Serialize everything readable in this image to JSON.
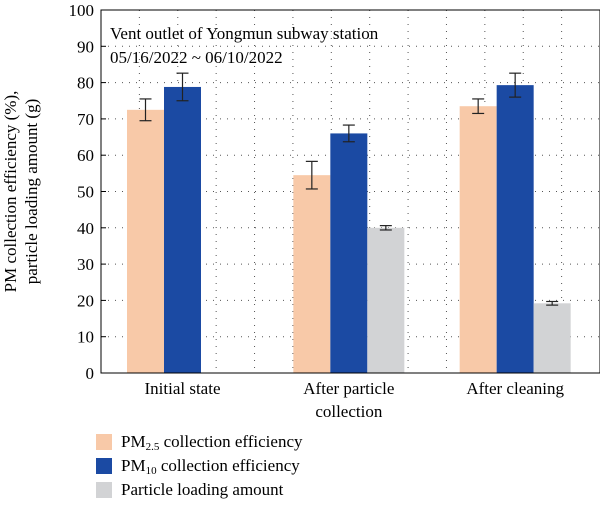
{
  "chart_data": {
    "type": "bar",
    "ylabel_line1": "PM collection efficiency (%),",
    "ylabel_line2": "particle loading amount (g)",
    "annotation_line1": "Vent outlet of Yongmun subway station",
    "annotation_line2": "05/16/2022 ~ 06/10/2022",
    "ylim": [
      0,
      100
    ],
    "yticks": [
      0,
      10,
      20,
      30,
      40,
      50,
      60,
      70,
      80,
      90,
      100
    ],
    "grid": true,
    "legend_position": "bottom",
    "categories": [
      {
        "line1": "Initial state",
        "line2": ""
      },
      {
        "line1": "After particle",
        "line2": "collection"
      },
      {
        "line1": "After cleaning",
        "line2": ""
      }
    ],
    "series": [
      {
        "label_main": "PM",
        "label_sub": "2.5",
        "label_rest": " collection efficiency",
        "color": "#f8c9a8",
        "values": [
          72.5,
          54.5,
          73.5
        ],
        "errors": [
          3.0,
          3.8,
          2.0
        ]
      },
      {
        "label_main": "PM",
        "label_sub": "10",
        "label_rest": " collection efficiency",
        "color": "#1b4aa3",
        "values": [
          78.8,
          66.0,
          79.3
        ],
        "errors": [
          3.8,
          2.3,
          3.3
        ]
      },
      {
        "label_main": "Particle loading amount",
        "label_sub": "",
        "label_rest": "",
        "color": "#d2d3d5",
        "values": [
          null,
          40.0,
          19.2
        ],
        "errors": [
          null,
          0.6,
          0.5
        ]
      }
    ]
  }
}
